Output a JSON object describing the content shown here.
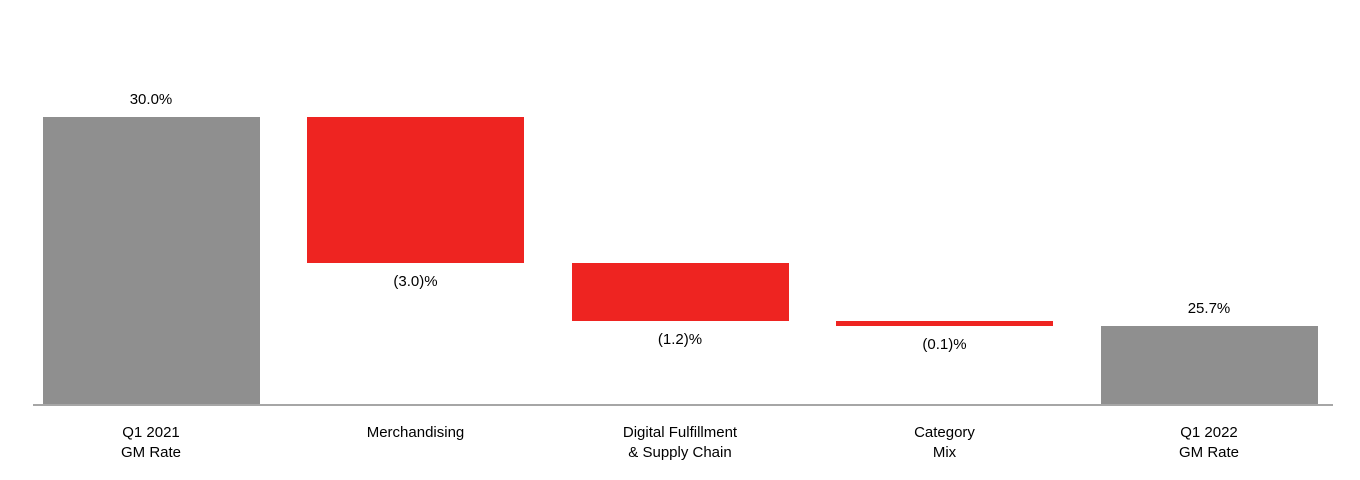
{
  "chart_data": {
    "type": "waterfall",
    "title": "",
    "categories": [
      {
        "label_lines": [
          "Q1 2021",
          "GM Rate"
        ],
        "value_label": "30.0%",
        "start": null,
        "end": 30.0,
        "delta": null,
        "role": "total",
        "label_position": "above"
      },
      {
        "label_lines": [
          "Merchandising"
        ],
        "value_label": "(3.0)%",
        "start": 30.0,
        "end": 27.0,
        "delta": -3.0,
        "role": "decrease",
        "label_position": "below"
      },
      {
        "label_lines": [
          "Digital Fulfillment",
          "& Supply Chain"
        ],
        "value_label": "(1.2)%",
        "start": 27.0,
        "end": 25.8,
        "delta": -1.2,
        "role": "decrease",
        "label_position": "below"
      },
      {
        "label_lines": [
          "Category",
          "Mix"
        ],
        "value_label": "(0.1)%",
        "start": 25.8,
        "end": 25.7,
        "delta": -0.1,
        "role": "decrease",
        "label_position": "below"
      },
      {
        "label_lines": [
          "Q1 2022",
          "GM Rate"
        ],
        "value_label": "25.7%",
        "start": null,
        "end": 25.7,
        "delta": null,
        "role": "total",
        "label_position": "above"
      }
    ],
    "ylim": [
      24.1,
      30.0
    ],
    "colors": {
      "total": "#8f8f8f",
      "decrease": "#ee2421"
    },
    "axis_color": "#a6a6a6",
    "label_color": "#000000",
    "grid": false,
    "legend": false
  }
}
